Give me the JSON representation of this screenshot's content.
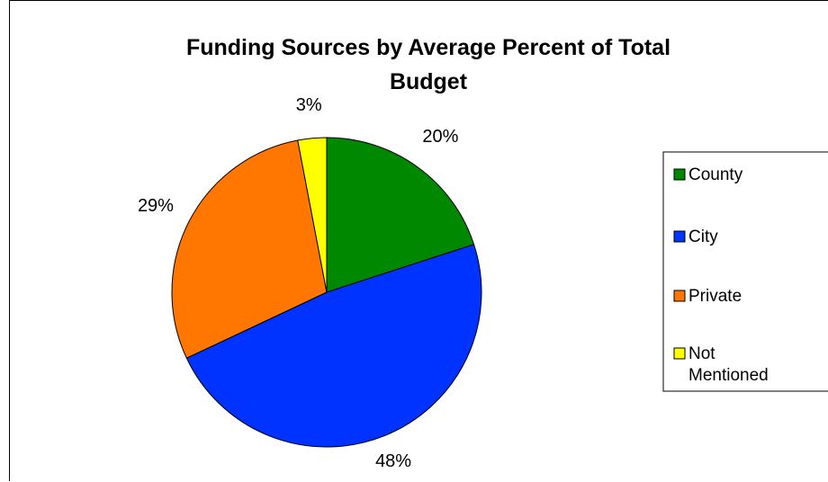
{
  "chart_data": {
    "type": "pie",
    "title_lines": [
      "Funding Sources by Average Percent of Total",
      "Budget"
    ],
    "slices": [
      {
        "name": "County",
        "value": 20,
        "label": "20%",
        "color": "#008800"
      },
      {
        "name": "City",
        "value": 48,
        "label": "48%",
        "color": "#0033ff"
      },
      {
        "name": "Private",
        "value": 29,
        "label": "29%",
        "color": "#ff7700"
      },
      {
        "name": "Not Mentioned",
        "value": 3,
        "label": "3%",
        "color": "#ffff00"
      }
    ],
    "legend": {
      "placement": "right",
      "entries": [
        {
          "lines": [
            "County"
          ]
        },
        {
          "lines": [
            "City"
          ]
        },
        {
          "lines": [
            "Private"
          ]
        },
        {
          "lines": [
            "Not",
            "Mentioned"
          ]
        }
      ]
    }
  }
}
